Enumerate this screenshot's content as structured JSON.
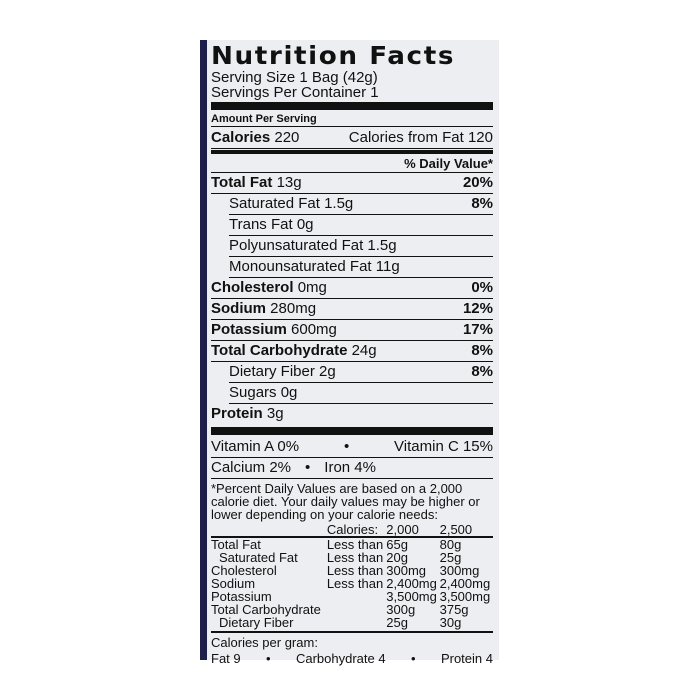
{
  "title": "Nutrition Facts",
  "serving_size": "Serving Size 1 Bag (42g)",
  "servings_per_container": "Servings Per Container 1",
  "amount_per_serving": "Amount Per Serving",
  "calories": {
    "label": "Calories",
    "value": "220",
    "from_fat": "Calories from Fat 120"
  },
  "daily_value_header": "% Daily Value*",
  "nutrients": [
    {
      "label": "Total Fat",
      "amount": "13g",
      "dv": "20%"
    },
    {
      "label": "Saturated Fat",
      "amount": "1.5g",
      "dv": "8%"
    },
    {
      "label": "Trans Fat",
      "amount": "0g",
      "dv": ""
    },
    {
      "label": "Polyunsaturated Fat",
      "amount": "1.5g",
      "dv": ""
    },
    {
      "label": "Monounsaturated Fat",
      "amount": "11g",
      "dv": ""
    },
    {
      "label": "Cholesterol",
      "amount": "0mg",
      "dv": "0%"
    },
    {
      "label": "Sodium",
      "amount": "280mg",
      "dv": "12%"
    },
    {
      "label": "Potassium",
      "amount": "600mg",
      "dv": "17%"
    },
    {
      "label": "Total Carbohydrate",
      "amount": "24g",
      "dv": "8%"
    },
    {
      "label": "Dietary Fiber",
      "amount": "2g",
      "dv": "8%"
    },
    {
      "label": "Sugars",
      "amount": "0g",
      "dv": ""
    },
    {
      "label": "Protein",
      "amount": "3g",
      "dv": ""
    }
  ],
  "vitamins": [
    {
      "left": "Vitamin A 0%",
      "right": "Vitamin C 15%"
    },
    {
      "left": "Calcium 2%",
      "right": "Iron 4%"
    }
  ],
  "bullet": "•",
  "footnote": "*Percent Daily Values are based on a 2,000 calorie diet. Your daily values may be higher or lower depending on your calorie needs:",
  "reference": {
    "header": [
      "",
      "",
      "Calories:",
      "2,000",
      "2,500"
    ],
    "rows": [
      [
        "Total Fat",
        "Less than",
        "65g",
        "80g"
      ],
      [
        "Saturated Fat",
        "Less than",
        "20g",
        "25g"
      ],
      [
        "Cholesterol",
        "Less than",
        "300mg",
        "300mg"
      ],
      [
        "Sodium",
        "Less than",
        "2,400mg",
        "2,400mg"
      ],
      [
        "Potassium",
        "",
        "3,500mg",
        "3,500mg"
      ],
      [
        "Total Carbohydrate",
        "",
        "300g",
        "375g"
      ],
      [
        "Dietary Fiber",
        "",
        "25g",
        "30g"
      ]
    ]
  },
  "calories_per_gram": {
    "label": "Calories per gram:",
    "fat": "Fat 9",
    "carb": "Carbohydrate 4",
    "protein": "Protein 4"
  }
}
